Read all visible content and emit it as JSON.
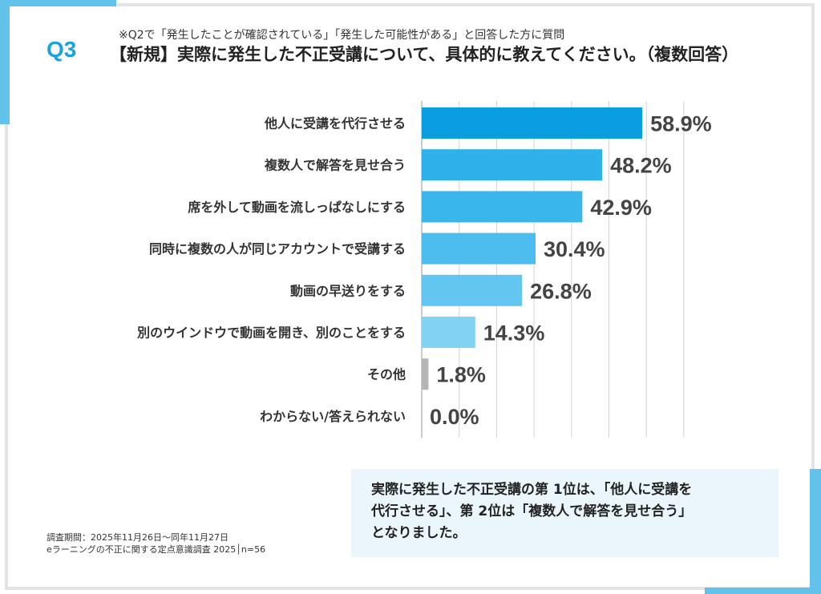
{
  "header": {
    "question_number": "Q3",
    "note": "※Q2で「発生したことが確認されている」「発生した可能性がある」と回答した方に質問",
    "title": "【新規】実際に発生した不正受講について、具体的に教えてください。（複数回答）"
  },
  "chart_data": {
    "type": "bar",
    "orientation": "horizontal",
    "categories": [
      "他人に受講を代行させる",
      "複数人で解答を見せ合う",
      "席を外して動画を流しっぱなしにする",
      "同時に複数の人が同じアカウントで受講する",
      "動画の早送りをする",
      "別のウインドウで動画を開き、別のことをする",
      "その他",
      "わからない/答えられない"
    ],
    "values": [
      58.9,
      48.2,
      42.9,
      30.4,
      26.8,
      14.3,
      1.8,
      0.0
    ],
    "labels": [
      "58.9%",
      "48.2%",
      "42.9%",
      "30.4%",
      "26.8%",
      "14.3%",
      "1.8%",
      "0.0%"
    ],
    "colors": [
      "#0a9ee0",
      "#2eb0ea",
      "#3bb6ec",
      "#4cbdee",
      "#62c6f0",
      "#82d2f3",
      "#b5b5b5",
      "#b5b5b5"
    ],
    "xlim": [
      0,
      70
    ],
    "grid": true
  },
  "callout": {
    "line1": "実際に発生した不正受講の第 1位は、「他人に受講を",
    "line2": "代行させる」、第 2位は「複数人で解答を見せ合う」",
    "line3": "となりました。"
  },
  "footer": {
    "period": "調査期間：2025年11月26日～同年11月27日",
    "survey": "eラーニングの不正に関する定点意識調査 2025│n=56"
  }
}
